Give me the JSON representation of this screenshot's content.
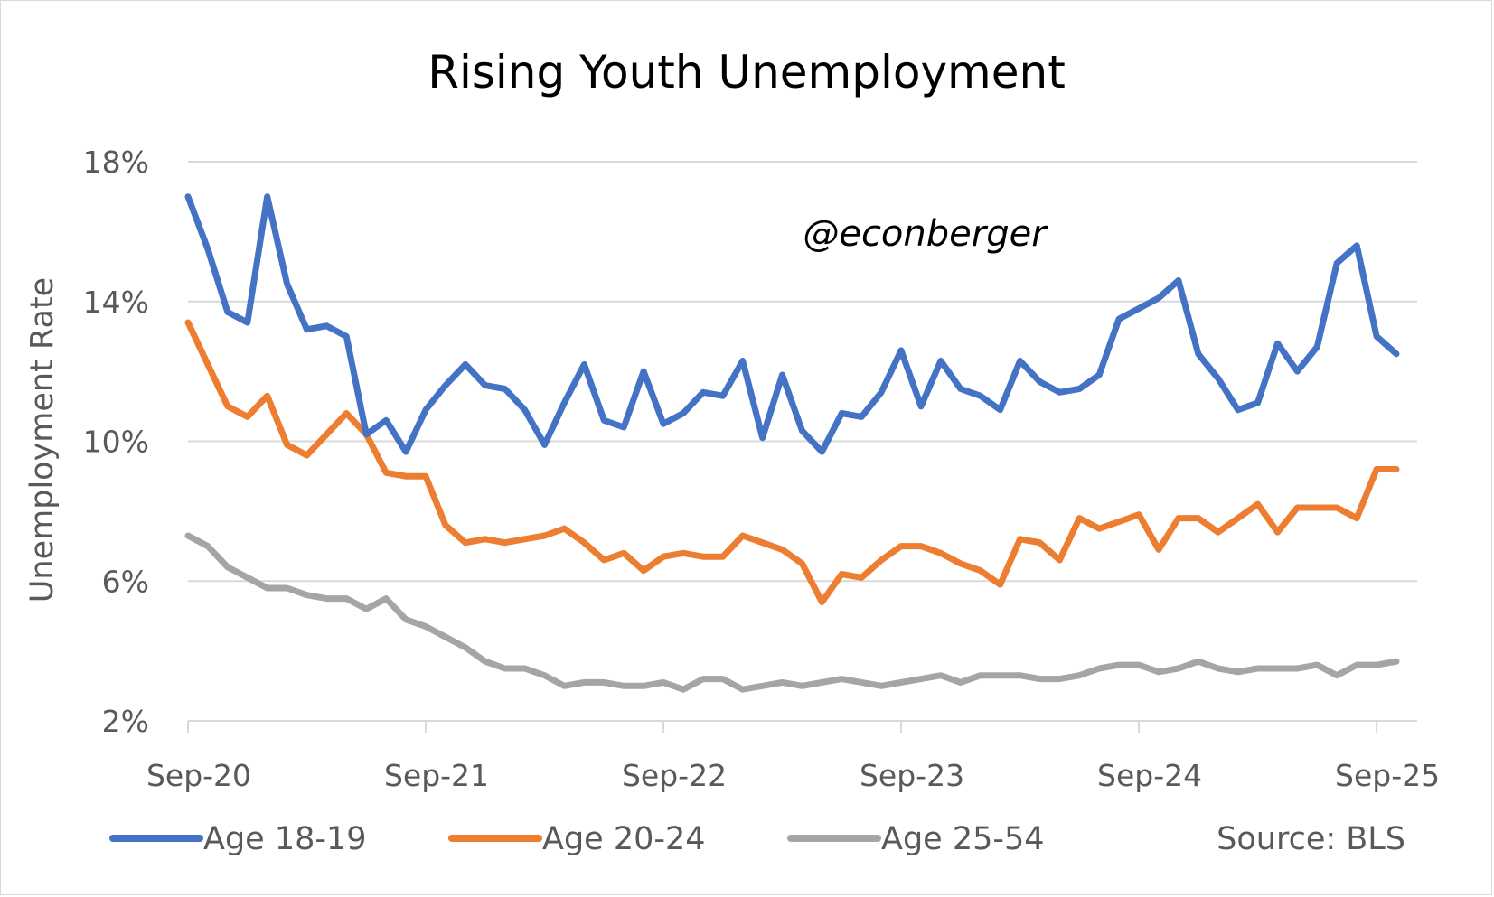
{
  "chart_data": {
    "type": "line",
    "title": "Rising Youth Unemployment",
    "xlabel": "",
    "ylabel": "Unemployment Rate",
    "ylim": [
      2,
      18
    ],
    "y_ticks": [
      2,
      6,
      10,
      14,
      18
    ],
    "y_tick_labels": [
      "2%",
      "6%",
      "10%",
      "14%",
      "18%"
    ],
    "x_tick_labels": [
      "Sep-20",
      "Sep-21",
      "Sep-22",
      "Sep-23",
      "Sep-24",
      "Sep-25"
    ],
    "x_tick_index": [
      0,
      12,
      24,
      36,
      48,
      60
    ],
    "grid": true,
    "legend_position": "bottom",
    "annotation": "@econberger",
    "source": "Source: BLS",
    "series": [
      {
        "name": "Age 18-19",
        "color": "#4472C4",
        "values": [
          17.0,
          15.5,
          13.7,
          13.4,
          17.0,
          14.5,
          13.2,
          13.3,
          13.0,
          10.2,
          10.6,
          9.7,
          10.9,
          11.6,
          12.2,
          11.6,
          11.5,
          10.9,
          9.9,
          11.1,
          12.2,
          10.6,
          10.4,
          12.0,
          10.5,
          10.8,
          11.4,
          11.3,
          12.3,
          10.1,
          11.9,
          10.3,
          9.7,
          10.8,
          10.7,
          11.4,
          12.6,
          11.0,
          12.3,
          11.5,
          11.3,
          10.9,
          12.3,
          11.7,
          11.4,
          11.5,
          11.9,
          13.5,
          13.8,
          14.1,
          14.6,
          12.5,
          11.8,
          10.9,
          11.1,
          12.8,
          12.0,
          12.7,
          15.1,
          15.6,
          13.0,
          12.5
        ]
      },
      {
        "name": "Age 20-24",
        "color": "#ED7D31",
        "values": [
          13.4,
          12.2,
          11.0,
          10.7,
          11.3,
          9.9,
          9.6,
          10.2,
          10.8,
          10.2,
          9.1,
          9.0,
          9.0,
          7.6,
          7.1,
          7.2,
          7.1,
          7.2,
          7.3,
          7.5,
          7.1,
          6.6,
          6.8,
          6.3,
          6.7,
          6.8,
          6.7,
          6.7,
          7.3,
          7.1,
          6.9,
          6.5,
          5.4,
          6.2,
          6.1,
          6.6,
          7.0,
          7.0,
          6.8,
          6.5,
          6.3,
          5.9,
          7.2,
          7.1,
          6.6,
          7.8,
          7.5,
          7.7,
          7.9,
          6.9,
          7.8,
          7.8,
          7.4,
          7.8,
          8.2,
          7.4,
          8.1,
          8.1,
          8.1,
          7.8,
          9.2,
          9.2
        ]
      },
      {
        "name": "Age 25-54",
        "color": "#A5A5A5",
        "values": [
          7.3,
          7.0,
          6.4,
          6.1,
          5.8,
          5.8,
          5.6,
          5.5,
          5.5,
          5.2,
          5.5,
          4.9,
          4.7,
          4.4,
          4.1,
          3.7,
          3.5,
          3.5,
          3.3,
          3.0,
          3.1,
          3.1,
          3.0,
          3.0,
          3.1,
          2.9,
          3.2,
          3.2,
          2.9,
          3.0,
          3.1,
          3.0,
          3.1,
          3.2,
          3.1,
          3.0,
          3.1,
          3.2,
          3.3,
          3.1,
          3.3,
          3.3,
          3.3,
          3.2,
          3.2,
          3.3,
          3.5,
          3.6,
          3.6,
          3.4,
          3.5,
          3.7,
          3.5,
          3.4,
          3.5,
          3.5,
          3.5,
          3.6,
          3.3,
          3.6,
          3.6,
          3.7
        ]
      }
    ]
  }
}
